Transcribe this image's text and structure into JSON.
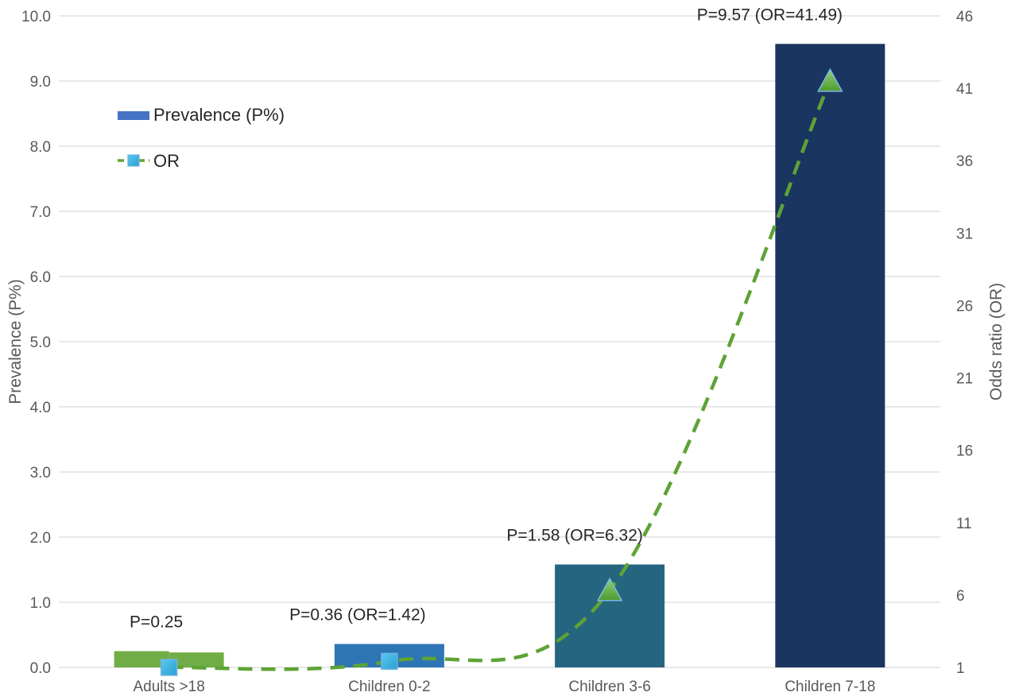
{
  "chart_data": {
    "type": "bar",
    "title": "",
    "categories": [
      "Adults >18",
      "Children 0-2",
      "Children 3-6",
      "Children 7-18"
    ],
    "series": [
      {
        "name": "Prevalence (P%)",
        "type": "bar",
        "axis": "left",
        "values": [
          0.25,
          0.36,
          1.58,
          9.57
        ],
        "colors": [
          "#70ad47",
          "#2e75b6",
          "#25657f",
          "#1a3560"
        ]
      },
      {
        "name": "OR",
        "type": "line",
        "axis": "right",
        "style": "dashed-smooth",
        "line_color": "#5ea336",
        "values": [
          1,
          1.42,
          6.32,
          41.49
        ],
        "markers": [
          "square",
          "square",
          "triangle",
          "triangle"
        ]
      }
    ],
    "data_labels": [
      "P=0.25",
      "P=0.36 (OR=1.42)",
      "P=1.58 (OR=6.32)",
      "P=9.57 (OR=41.49)"
    ],
    "ylabel": "Prevalence (P%)",
    "y2label": "Odds ratio (OR)",
    "ylim": [
      0,
      10
    ],
    "y2lim": [
      1,
      46
    ],
    "yticks": [
      "0.0",
      "1.0",
      "2.0",
      "3.0",
      "4.0",
      "5.0",
      "6.0",
      "7.0",
      "8.0",
      "9.0",
      "10.0"
    ],
    "y2ticks": [
      "1",
      "6",
      "11",
      "16",
      "21",
      "26",
      "31",
      "36",
      "41",
      "46"
    ],
    "grid": true,
    "legend": {
      "position": "top-left",
      "items": [
        {
          "label": "Prevalence (P%)",
          "kind": "bar",
          "color": "#4472c4"
        },
        {
          "label": "OR",
          "kind": "line",
          "color": "#5ea336"
        }
      ]
    }
  }
}
